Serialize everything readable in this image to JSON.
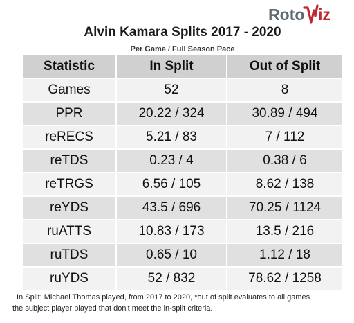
{
  "logo": {
    "brand": "RotoViz",
    "brand_color": "#c0262d",
    "brand_gray": "#5f6b74"
  },
  "title": "Alvin Kamara Splits 2017 - 2020",
  "subtitle": "Per Game / Full Season Pace",
  "table": {
    "headers": [
      "Statistic",
      "In Split",
      "Out of Split"
    ],
    "rows": [
      [
        "Games",
        "52",
        "8"
      ],
      [
        "PPR",
        "20.22 / 324",
        "30.89 / 494"
      ],
      [
        "reRECS",
        "5.21 / 83",
        "7 / 112"
      ],
      [
        "reTDS",
        "0.23 / 4",
        "0.38 / 6"
      ],
      [
        "reTRGS",
        "6.56 / 105",
        "8.62 / 138"
      ],
      [
        "reYDS",
        "43.5 / 696",
        "70.25 / 1124"
      ],
      [
        "ruATTS",
        "10.83 / 173",
        "13.5 / 216"
      ],
      [
        "ruTDS",
        "0.65 / 10",
        "1.12 / 18"
      ],
      [
        "ruYDS",
        "52 / 832",
        "78.62 / 1258"
      ]
    ]
  },
  "footnote": {
    "line1": "In Split: Michael Thomas played, from 2017 to 2020,  *out of split evaluates to all games",
    "line2": "the subject player played that don't meet the in-split criteria."
  }
}
